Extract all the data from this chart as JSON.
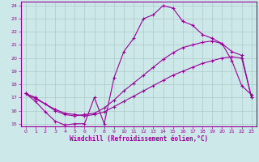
{
  "xlabel": "Windchill (Refroidissement éolien,°C)",
  "background_color": "#cce8e8",
  "grid_color": "#b0c8c8",
  "line_color": "#990099",
  "xlim": [
    -0.5,
    23.5
  ],
  "ylim": [
    14.8,
    24.3
  ],
  "yticks": [
    15,
    16,
    17,
    18,
    19,
    20,
    21,
    22,
    23,
    24
  ],
  "xticks": [
    0,
    1,
    2,
    3,
    4,
    5,
    6,
    7,
    8,
    9,
    10,
    11,
    12,
    13,
    14,
    15,
    16,
    17,
    18,
    19,
    20,
    21,
    22,
    23
  ],
  "line1_x": [
    0,
    1,
    2,
    3,
    4,
    5,
    6,
    7,
    8,
    9,
    10,
    11,
    12,
    13,
    14,
    15,
    16,
    17,
    18,
    19,
    20,
    21,
    22,
    23
  ],
  "line1_y": [
    17.3,
    16.7,
    15.9,
    15.2,
    14.9,
    15.0,
    15.0,
    17.0,
    15.0,
    18.5,
    20.5,
    21.5,
    23.0,
    23.3,
    24.0,
    23.8,
    22.8,
    22.5,
    21.8,
    21.5,
    21.1,
    19.8,
    17.9,
    17.2
  ],
  "line2_x": [
    0,
    1,
    3,
    4,
    5,
    6,
    7,
    8,
    9,
    10,
    11,
    12,
    13,
    14,
    15,
    16,
    17,
    18,
    19,
    20,
    21,
    22,
    23
  ],
  "line2_y": [
    17.3,
    17.0,
    16.0,
    15.7,
    15.6,
    15.7,
    15.8,
    16.2,
    16.8,
    17.5,
    18.1,
    18.7,
    19.3,
    19.9,
    20.4,
    20.8,
    21.0,
    21.2,
    21.3,
    21.1,
    20.5,
    20.2,
    17.0
  ],
  "line3_x": [
    0,
    1,
    2,
    3,
    4,
    5,
    6,
    7,
    8,
    9,
    10,
    11,
    12,
    13,
    14,
    15,
    16,
    17,
    18,
    19,
    20,
    21,
    22,
    23
  ],
  "line3_y": [
    17.3,
    16.9,
    16.5,
    16.1,
    15.8,
    15.7,
    15.6,
    15.7,
    15.9,
    16.3,
    16.7,
    17.1,
    17.5,
    17.9,
    18.3,
    18.7,
    19.0,
    19.3,
    19.6,
    19.8,
    20.0,
    20.1,
    20.0,
    17.0
  ]
}
